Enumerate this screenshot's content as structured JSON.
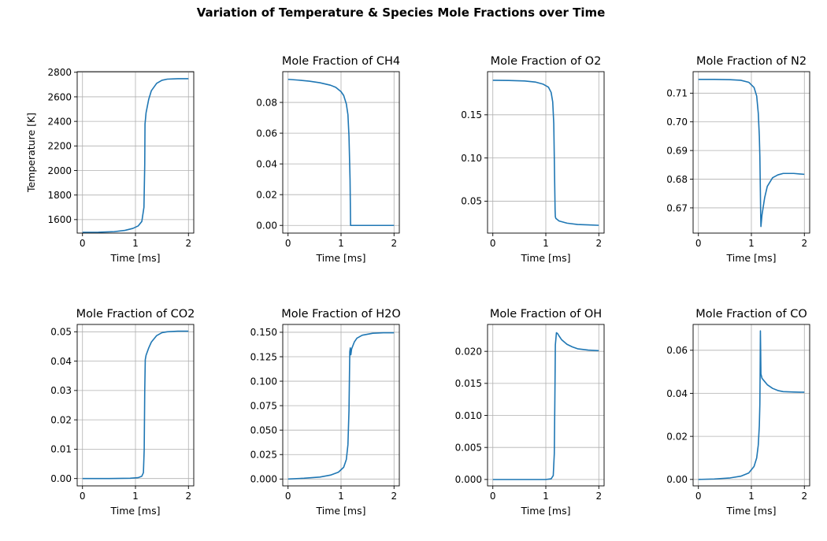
{
  "figure": {
    "title": "Variation of Temperature & Species Mole Fractions over Time"
  },
  "colors": {
    "series": "#1f77b4",
    "grid": "#b0b0b0"
  },
  "chart_data": [
    {
      "type": "line",
      "title": "",
      "xlabel": "Time [ms]",
      "ylabel": "Temperature [K]",
      "xlim": [
        -0.1,
        2.1
      ],
      "ylim": [
        1490,
        2805
      ],
      "xticks": [
        0,
        1,
        2
      ],
      "xtick_labels": [
        "0",
        "1",
        "2"
      ],
      "yticks": [
        1600,
        1800,
        2000,
        2200,
        2400,
        2600,
        2800
      ],
      "ytick_labels": [
        "1600",
        "1800",
        "2000",
        "2200",
        "2400",
        "2600",
        "2800"
      ],
      "grid": true,
      "series": [
        {
          "x": [
            0,
            0.3,
            0.6,
            0.8,
            0.95,
            1.05,
            1.12,
            1.16,
            1.175,
            1.18,
            1.185,
            1.2,
            1.25,
            1.3,
            1.4,
            1.5,
            1.6,
            1.8,
            2.0
          ],
          "y": [
            1496,
            1497,
            1502,
            1512,
            1528,
            1548,
            1585,
            1700,
            2050,
            2380,
            2400,
            2470,
            2580,
            2650,
            2710,
            2735,
            2744,
            2748,
            2748
          ]
        }
      ]
    },
    {
      "type": "line",
      "title": "Mole Fraction of CH4",
      "xlabel": "Time [ms]",
      "ylabel": "",
      "xlim": [
        -0.1,
        2.1
      ],
      "ylim": [
        -0.005,
        0.1
      ],
      "xticks": [
        0,
        1,
        2
      ],
      "xtick_labels": [
        "0",
        "1",
        "2"
      ],
      "yticks": [
        0.0,
        0.02,
        0.04,
        0.06,
        0.08
      ],
      "ytick_labels": [
        "0.00",
        "0.02",
        "0.04",
        "0.06",
        "0.08"
      ],
      "grid": true,
      "series": [
        {
          "x": [
            0,
            0.2,
            0.4,
            0.6,
            0.8,
            0.9,
            1.0,
            1.05,
            1.1,
            1.13,
            1.15,
            1.17,
            1.18,
            1.2,
            1.5,
            2.0
          ],
          "y": [
            0.095,
            0.0945,
            0.0938,
            0.0928,
            0.0912,
            0.0898,
            0.087,
            0.0845,
            0.079,
            0.072,
            0.058,
            0.03,
            0.0,
            0.0,
            0.0,
            0.0
          ]
        }
      ]
    },
    {
      "type": "line",
      "title": "Mole Fraction of O2",
      "xlabel": "Time [ms]",
      "ylabel": "",
      "xlim": [
        -0.1,
        2.1
      ],
      "ylim": [
        0.013,
        0.2
      ],
      "xticks": [
        0,
        1,
        2
      ],
      "xtick_labels": [
        "0",
        "1",
        "2"
      ],
      "yticks": [
        0.05,
        0.1,
        0.15
      ],
      "ytick_labels": [
        "0.05",
        "0.10",
        "0.15"
      ],
      "grid": true,
      "series": [
        {
          "x": [
            0,
            0.3,
            0.6,
            0.8,
            0.95,
            1.05,
            1.1,
            1.13,
            1.15,
            1.165,
            1.175,
            1.18,
            1.19,
            1.25,
            1.4,
            1.6,
            1.8,
            2.0
          ],
          "y": [
            0.19,
            0.1898,
            0.1892,
            0.188,
            0.1855,
            0.182,
            0.176,
            0.165,
            0.14,
            0.08,
            0.04,
            0.032,
            0.03,
            0.027,
            0.0245,
            0.023,
            0.0225,
            0.022
          ]
        }
      ]
    },
    {
      "type": "line",
      "title": "Mole Fraction of N2",
      "xlabel": "Time [ms]",
      "ylabel": "",
      "xlim": [
        -0.1,
        2.1
      ],
      "ylim": [
        0.6612,
        0.7175
      ],
      "xticks": [
        0,
        1,
        2
      ],
      "xtick_labels": [
        "0",
        "1",
        "2"
      ],
      "yticks": [
        0.67,
        0.68,
        0.69,
        0.7,
        0.71
      ],
      "ytick_labels": [
        "0.67",
        "0.68",
        "0.69",
        "0.70",
        "0.71"
      ],
      "grid": true,
      "series": [
        {
          "x": [
            0,
            0.3,
            0.6,
            0.8,
            0.95,
            1.05,
            1.1,
            1.13,
            1.15,
            1.16,
            1.17,
            1.175,
            1.18,
            1.2,
            1.25,
            1.3,
            1.4,
            1.5,
            1.6,
            1.8,
            2.0
          ],
          "y": [
            0.7148,
            0.7148,
            0.7147,
            0.7145,
            0.7138,
            0.712,
            0.709,
            0.703,
            0.695,
            0.688,
            0.675,
            0.668,
            0.6635,
            0.6675,
            0.6735,
            0.6775,
            0.6805,
            0.6815,
            0.682,
            0.682,
            0.6817
          ]
        }
      ]
    },
    {
      "type": "line",
      "title": "Mole Fraction of CO2",
      "xlabel": "Time [ms]",
      "ylabel": "",
      "xlim": [
        -0.1,
        2.1
      ],
      "ylim": [
        -0.0025,
        0.0525
      ],
      "xticks": [
        0,
        1,
        2
      ],
      "xtick_labels": [
        "0",
        "1",
        "2"
      ],
      "yticks": [
        0.0,
        0.01,
        0.02,
        0.03,
        0.04,
        0.05
      ],
      "ytick_labels": [
        "0.00",
        "0.01",
        "0.02",
        "0.03",
        "0.04",
        "0.05"
      ],
      "grid": true,
      "series": [
        {
          "x": [
            0,
            0.5,
            0.9,
            1.05,
            1.12,
            1.15,
            1.165,
            1.175,
            1.185,
            1.2,
            1.25,
            1.3,
            1.4,
            1.5,
            1.6,
            1.8,
            2.0
          ],
          "y": [
            0.0,
            0.0,
            0.0001,
            0.0003,
            0.0008,
            0.002,
            0.01,
            0.03,
            0.0405,
            0.042,
            0.0445,
            0.0465,
            0.0487,
            0.0497,
            0.05,
            0.0502,
            0.0502
          ]
        }
      ]
    },
    {
      "type": "line",
      "title": "Mole Fraction of H2O",
      "xlabel": "Time [ms]",
      "ylabel": "",
      "xlim": [
        -0.1,
        2.1
      ],
      "ylim": [
        -0.007,
        0.158
      ],
      "xticks": [
        0,
        1,
        2
      ],
      "xtick_labels": [
        "0",
        "1",
        "2"
      ],
      "yticks": [
        0.0,
        0.025,
        0.05,
        0.075,
        0.1,
        0.125,
        0.15
      ],
      "ytick_labels": [
        "0.000",
        "0.025",
        "0.050",
        "0.075",
        "0.100",
        "0.125",
        "0.150"
      ],
      "grid": true,
      "series": [
        {
          "x": [
            0,
            0.3,
            0.6,
            0.8,
            0.95,
            1.05,
            1.1,
            1.13,
            1.15,
            1.165,
            1.175,
            1.18,
            1.185,
            1.2,
            1.25,
            1.3,
            1.4,
            1.5,
            1.6,
            1.8,
            2.0
          ],
          "y": [
            0.0,
            0.0008,
            0.002,
            0.004,
            0.007,
            0.012,
            0.02,
            0.035,
            0.07,
            0.13,
            0.134,
            0.128,
            0.127,
            0.133,
            0.14,
            0.144,
            0.147,
            0.148,
            0.149,
            0.1495,
            0.1495
          ]
        }
      ]
    },
    {
      "type": "line",
      "title": "Mole Fraction of OH",
      "xlabel": "Time [ms]",
      "ylabel": "",
      "xlim": [
        -0.1,
        2.1
      ],
      "ylim": [
        -0.001,
        0.0242
      ],
      "xticks": [
        0,
        1,
        2
      ],
      "xtick_labels": [
        "0",
        "1",
        "2"
      ],
      "yticks": [
        0.0,
        0.005,
        0.01,
        0.015,
        0.02
      ],
      "ytick_labels": [
        "0.000",
        "0.005",
        "0.010",
        "0.015",
        "0.020"
      ],
      "grid": true,
      "series": [
        {
          "x": [
            0,
            0.5,
            1.0,
            1.1,
            1.14,
            1.16,
            1.17,
            1.18,
            1.2,
            1.22,
            1.25,
            1.3,
            1.4,
            1.5,
            1.6,
            1.8,
            2.0
          ],
          "y": [
            0.0,
            0.0,
            0.0,
            0.0001,
            0.0006,
            0.004,
            0.012,
            0.021,
            0.0229,
            0.0228,
            0.0224,
            0.0218,
            0.0211,
            0.0207,
            0.0204,
            0.0202,
            0.0201
          ]
        }
      ]
    },
    {
      "type": "line",
      "title": "Mole Fraction of CO",
      "xlabel": "Time [ms]",
      "ylabel": "",
      "xlim": [
        -0.1,
        2.1
      ],
      "ylim": [
        -0.003,
        0.072
      ],
      "xticks": [
        0,
        1,
        2
      ],
      "xtick_labels": [
        "0",
        "1",
        "2"
      ],
      "yticks": [
        0.0,
        0.02,
        0.04,
        0.06
      ],
      "ytick_labels": [
        "0.00",
        "0.02",
        "0.04",
        "0.06"
      ],
      "grid": true,
      "series": [
        {
          "x": [
            0,
            0.3,
            0.6,
            0.8,
            0.95,
            1.05,
            1.1,
            1.13,
            1.15,
            1.16,
            1.165,
            1.17,
            1.175,
            1.18,
            1.2,
            1.25,
            1.3,
            1.4,
            1.5,
            1.6,
            1.8,
            2.0
          ],
          "y": [
            0.0,
            0.0002,
            0.0007,
            0.0015,
            0.003,
            0.006,
            0.01,
            0.016,
            0.025,
            0.035,
            0.05,
            0.069,
            0.06,
            0.049,
            0.047,
            0.0455,
            0.044,
            0.0423,
            0.0413,
            0.0408,
            0.0406,
            0.0405
          ]
        }
      ]
    }
  ]
}
